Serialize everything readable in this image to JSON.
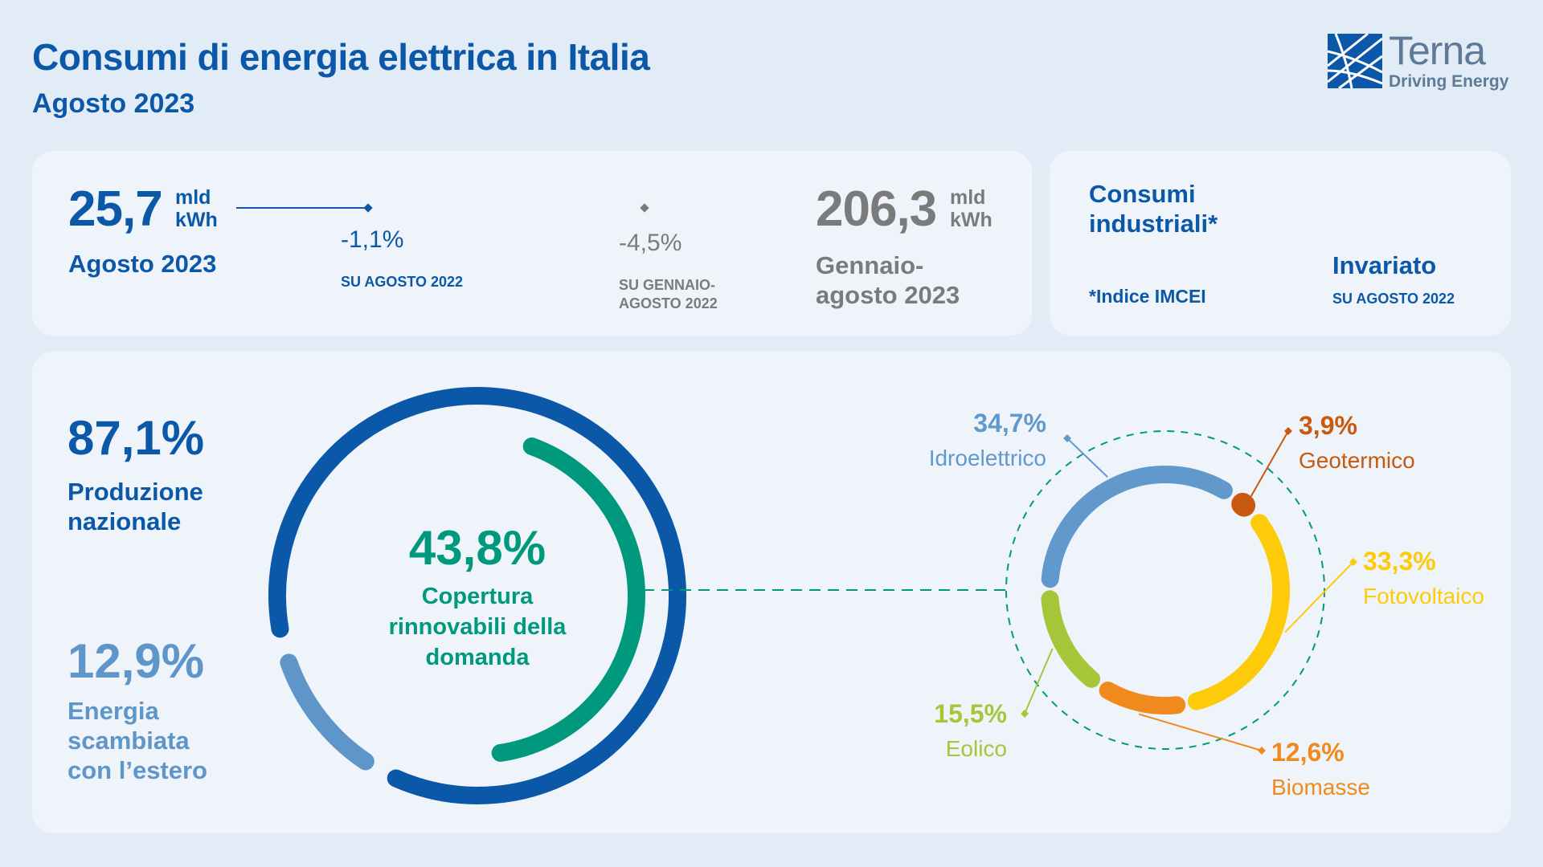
{
  "header": {
    "title": "Consumi di energia elettrica in Italia",
    "subtitle": "Agosto 2023",
    "logo_name": "Terna",
    "logo_tagline": "Driving Energy"
  },
  "monthly": {
    "value": "25,7",
    "unit_line1": "mld",
    "unit_line2": "kWh",
    "period": "Agosto 2023",
    "change": "-1,1%",
    "change_ref": "SU AGOSTO 2022"
  },
  "cumulative": {
    "value": "206,3",
    "unit_line1": "mld",
    "unit_line2": "kWh",
    "period_line1": "Gennaio-",
    "period_line2": "agosto 2023",
    "change": "-4,5%",
    "change_ref_line1": "SU GENNAIO-",
    "change_ref_line2": "AGOSTO 2022"
  },
  "industrial": {
    "title_line1": "Consumi",
    "title_line2": "industriali*",
    "note": "*Indice IMCEI",
    "status": "Invariato",
    "status_ref": "SU AGOSTO 2022"
  },
  "colors": {
    "dark_blue": "#0c58a8",
    "light_blue": "#5f96c9",
    "green": "#00997d",
    "hydro": "#6199cd",
    "geo": "#c8590e",
    "solar": "#fecb0b",
    "biomass": "#f08a1c",
    "wind": "#a6c63a"
  },
  "chart_data": [
    {
      "type": "pie",
      "categories": [
        "Produzione nazionale",
        "Energia scambiata con l'estero"
      ],
      "values": [
        87.1,
        12.9
      ],
      "labels": [
        "87,1%",
        "12,9%"
      ],
      "label_lines": [
        [
          "Produzione",
          "nazionale"
        ],
        [
          "Energia",
          "scambiata",
          "con l’estero"
        ]
      ],
      "inner": {
        "value": 43.8,
        "label": "43,8%",
        "caption_lines": [
          "Copertura",
          "rinnovabili della",
          "domanda"
        ]
      }
    },
    {
      "type": "pie",
      "categories": [
        "Idroelettrico",
        "Geotermico",
        "Fotovoltaico",
        "Biomasse",
        "Eolico"
      ],
      "values": [
        34.7,
        3.9,
        33.3,
        12.6,
        15.5
      ],
      "labels": [
        "34,7%",
        "3,9%",
        "33,3%",
        "12,6%",
        "15,5%"
      ]
    }
  ]
}
